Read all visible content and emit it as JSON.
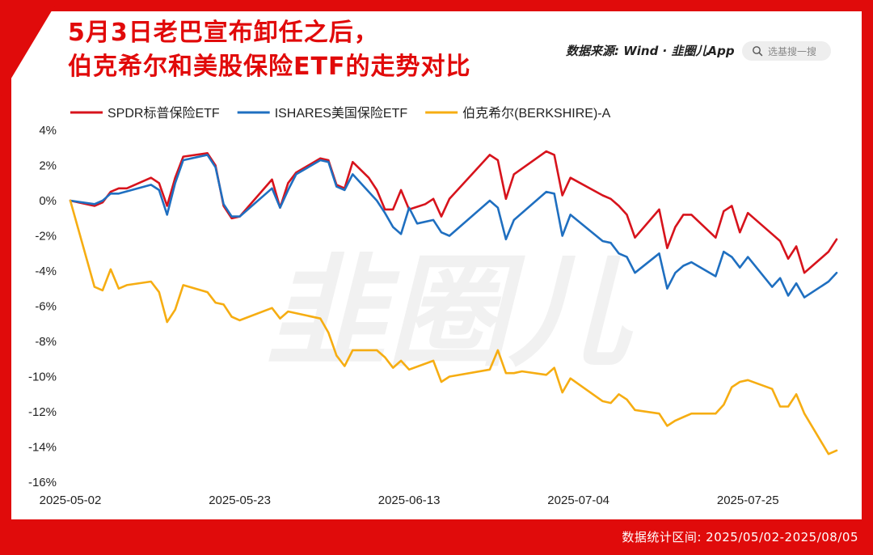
{
  "title": {
    "line1": "5月3日老巴宣布卸任之后，",
    "line2": "伯克希尔和美股保险ETF的走势对比"
  },
  "source": {
    "prefix": "数据来源: Wind · ",
    "brand": "韭圈儿App"
  },
  "search": {
    "label": "选基搜一搜",
    "icon": "search-icon"
  },
  "footer": {
    "text": "数据统计区间: 2025/05/02-2025/08/05"
  },
  "watermark": "韭圈儿",
  "colors": {
    "frame": "#e00b0b",
    "spdr": "#d7131c",
    "ishares": "#1f6fc0",
    "berkshire": "#f6ad12"
  },
  "chart_data": {
    "type": "line",
    "x_ticks": [
      "2025-05-02",
      "2025-05-23",
      "2025-06-13",
      "2025-07-04",
      "2025-07-25"
    ],
    "y_ticks": [
      "4%",
      "2%",
      "0%",
      "-2%",
      "-4%",
      "-6%",
      "-8%",
      "-10%",
      "-12%",
      "-14%",
      "-16%"
    ],
    "ylim": [
      -16,
      4
    ],
    "x_range": [
      0,
      95
    ],
    "grid": false,
    "legend_position": "top-left",
    "series": [
      {
        "name": "SPDR标普保险ETF",
        "color": "#d7131c",
        "points": [
          [
            0,
            0.0
          ],
          [
            3,
            -0.3
          ],
          [
            4,
            -0.1
          ],
          [
            5,
            0.5
          ],
          [
            6,
            0.7
          ],
          [
            7,
            0.7
          ],
          [
            10,
            1.3
          ],
          [
            11,
            1.0
          ],
          [
            12,
            -0.3
          ],
          [
            13,
            1.3
          ],
          [
            14,
            2.5
          ],
          [
            17,
            2.7
          ],
          [
            18,
            2.0
          ],
          [
            19,
            -0.3
          ],
          [
            20,
            -1.0
          ],
          [
            21,
            -0.9
          ],
          [
            25,
            1.2
          ],
          [
            26,
            -0.4
          ],
          [
            27,
            1.0
          ],
          [
            28,
            1.6
          ],
          [
            31,
            2.4
          ],
          [
            32,
            2.3
          ],
          [
            33,
            0.9
          ],
          [
            34,
            0.7
          ],
          [
            35,
            2.2
          ],
          [
            37,
            1.3
          ],
          [
            38,
            0.6
          ],
          [
            39,
            -0.5
          ],
          [
            40,
            -0.5
          ],
          [
            41,
            0.6
          ],
          [
            42,
            -0.5
          ],
          [
            44,
            -0.2
          ],
          [
            45,
            0.1
          ],
          [
            46,
            -0.9
          ],
          [
            47,
            0.1
          ],
          [
            52,
            2.6
          ],
          [
            53,
            2.3
          ],
          [
            54,
            0.1
          ],
          [
            55,
            1.5
          ],
          [
            59,
            2.8
          ],
          [
            60,
            2.6
          ],
          [
            61,
            0.3
          ],
          [
            62,
            1.3
          ],
          [
            66,
            0.3
          ],
          [
            67,
            0.1
          ],
          [
            68,
            -0.3
          ],
          [
            69,
            -0.8
          ],
          [
            70,
            -2.1
          ],
          [
            73,
            -0.5
          ],
          [
            74,
            -2.7
          ],
          [
            75,
            -1.5
          ],
          [
            76,
            -0.8
          ],
          [
            77,
            -0.8
          ],
          [
            80,
            -2.1
          ],
          [
            81,
            -0.6
          ],
          [
            82,
            -0.3
          ],
          [
            83,
            -1.8
          ],
          [
            84,
            -0.7
          ],
          [
            87,
            -1.9
          ],
          [
            88,
            -2.3
          ],
          [
            89,
            -3.3
          ],
          [
            90,
            -2.6
          ],
          [
            91,
            -4.1
          ],
          [
            92,
            -3.7
          ],
          [
            94,
            -2.9
          ],
          [
            95,
            -2.2
          ]
        ]
      },
      {
        "name": "ISHARES美国保险ETF",
        "color": "#1f6fc0",
        "points": [
          [
            0,
            0.0
          ],
          [
            3,
            -0.2
          ],
          [
            4,
            0.0
          ],
          [
            5,
            0.4
          ],
          [
            6,
            0.4
          ],
          [
            10,
            0.9
          ],
          [
            11,
            0.6
          ],
          [
            12,
            -0.8
          ],
          [
            13,
            1.0
          ],
          [
            14,
            2.3
          ],
          [
            17,
            2.6
          ],
          [
            18,
            1.9
          ],
          [
            19,
            -0.2
          ],
          [
            20,
            -0.9
          ],
          [
            21,
            -0.9
          ],
          [
            25,
            0.7
          ],
          [
            26,
            -0.4
          ],
          [
            27,
            0.6
          ],
          [
            28,
            1.5
          ],
          [
            31,
            2.3
          ],
          [
            32,
            2.2
          ],
          [
            33,
            0.8
          ],
          [
            34,
            0.6
          ],
          [
            35,
            1.5
          ],
          [
            38,
            0.0
          ],
          [
            39,
            -0.7
          ],
          [
            40,
            -1.5
          ],
          [
            41,
            -1.9
          ],
          [
            42,
            -0.4
          ],
          [
            43,
            -1.3
          ],
          [
            45,
            -1.1
          ],
          [
            46,
            -1.8
          ],
          [
            47,
            -2.0
          ],
          [
            52,
            0.0
          ],
          [
            53,
            -0.4
          ],
          [
            54,
            -2.2
          ],
          [
            55,
            -1.1
          ],
          [
            59,
            0.5
          ],
          [
            60,
            0.4
          ],
          [
            61,
            -2.0
          ],
          [
            62,
            -0.8
          ],
          [
            66,
            -2.3
          ],
          [
            67,
            -2.4
          ],
          [
            68,
            -3.0
          ],
          [
            69,
            -3.2
          ],
          [
            70,
            -4.1
          ],
          [
            73,
            -3.0
          ],
          [
            74,
            -5.0
          ],
          [
            75,
            -4.1
          ],
          [
            76,
            -3.7
          ],
          [
            77,
            -3.5
          ],
          [
            80,
            -4.3
          ],
          [
            81,
            -2.9
          ],
          [
            82,
            -3.2
          ],
          [
            83,
            -3.8
          ],
          [
            84,
            -3.2
          ],
          [
            87,
            -4.9
          ],
          [
            88,
            -4.4
          ],
          [
            89,
            -5.4
          ],
          [
            90,
            -4.7
          ],
          [
            91,
            -5.5
          ],
          [
            94,
            -4.6
          ],
          [
            95,
            -4.1
          ]
        ]
      },
      {
        "name": "伯克希尔(BERKSHIRE)-A",
        "color": "#f6ad12",
        "points": [
          [
            0,
            0.0
          ],
          [
            3,
            -4.9
          ],
          [
            4,
            -5.1
          ],
          [
            5,
            -3.9
          ],
          [
            6,
            -5.0
          ],
          [
            7,
            -4.8
          ],
          [
            10,
            -4.6
          ],
          [
            11,
            -5.2
          ],
          [
            12,
            -6.9
          ],
          [
            13,
            -6.2
          ],
          [
            14,
            -4.8
          ],
          [
            17,
            -5.2
          ],
          [
            18,
            -5.8
          ],
          [
            19,
            -5.9
          ],
          [
            20,
            -6.6
          ],
          [
            21,
            -6.8
          ],
          [
            25,
            -6.1
          ],
          [
            26,
            -6.7
          ],
          [
            27,
            -6.3
          ],
          [
            31,
            -6.7
          ],
          [
            32,
            -7.5
          ],
          [
            33,
            -8.8
          ],
          [
            34,
            -9.4
          ],
          [
            35,
            -8.5
          ],
          [
            38,
            -8.5
          ],
          [
            39,
            -8.9
          ],
          [
            40,
            -9.5
          ],
          [
            41,
            -9.1
          ],
          [
            42,
            -9.6
          ],
          [
            45,
            -9.1
          ],
          [
            46,
            -10.3
          ],
          [
            47,
            -10.0
          ],
          [
            52,
            -9.6
          ],
          [
            53,
            -8.5
          ],
          [
            54,
            -9.8
          ],
          [
            55,
            -9.8
          ],
          [
            56,
            -9.7
          ],
          [
            59,
            -9.9
          ],
          [
            60,
            -9.5
          ],
          [
            61,
            -10.9
          ],
          [
            62,
            -10.1
          ],
          [
            66,
            -11.4
          ],
          [
            67,
            -11.5
          ],
          [
            68,
            -11.0
          ],
          [
            69,
            -11.3
          ],
          [
            70,
            -11.9
          ],
          [
            73,
            -12.1
          ],
          [
            74,
            -12.8
          ],
          [
            75,
            -12.5
          ],
          [
            76,
            -12.3
          ],
          [
            77,
            -12.1
          ],
          [
            80,
            -12.1
          ],
          [
            81,
            -11.6
          ],
          [
            82,
            -10.6
          ],
          [
            83,
            -10.3
          ],
          [
            84,
            -10.2
          ],
          [
            87,
            -10.7
          ],
          [
            88,
            -11.7
          ],
          [
            89,
            -11.7
          ],
          [
            90,
            -11.0
          ],
          [
            91,
            -12.1
          ],
          [
            94,
            -14.4
          ],
          [
            95,
            -14.2
          ]
        ]
      }
    ]
  }
}
